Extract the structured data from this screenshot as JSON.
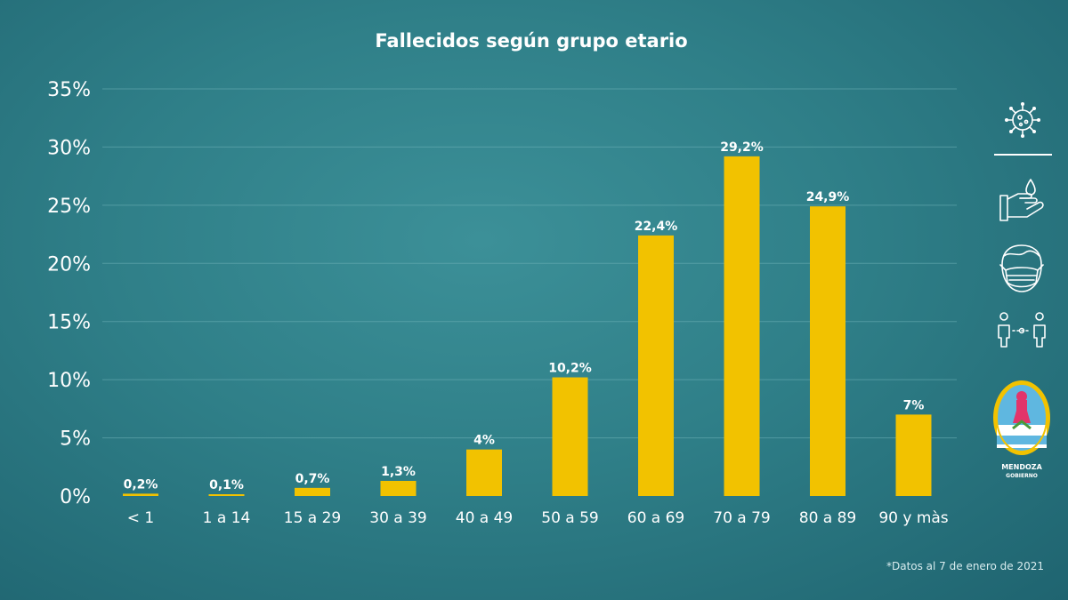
{
  "chart_data": {
    "type": "bar",
    "title": "Fallecidos según grupo etario",
    "categories": [
      "< 1",
      "1 a 14",
      "15 a 29",
      "30 a 39",
      "40 a 49",
      "50 a 59",
      "60 a 69",
      "70 a 79",
      "80 a 89",
      "90 y màs"
    ],
    "values": [
      0.2,
      0.1,
      0.7,
      1.3,
      4,
      10.2,
      22.4,
      29.2,
      24.9,
      7
    ],
    "data_labels": [
      "0,2%",
      "0,1%",
      "0,7%",
      "1,3%",
      "4%",
      "10,2%",
      "22,4%",
      "29,2%",
      "24,9%",
      "7%"
    ],
    "ylim": [
      0,
      35
    ],
    "yticks": [
      0,
      5,
      10,
      15,
      20,
      25,
      30,
      35
    ],
    "ytick_labels": [
      "0%",
      "5%",
      "10%",
      "15%",
      "20%",
      "25%",
      "30%",
      "35%"
    ],
    "grid": true,
    "bar_color": "#f2c200"
  },
  "footnote": "*Datos al 7 de enero de 2021",
  "sidebar": {
    "icons": [
      "virus-icon",
      "handwash-icon",
      "face-mask-icon",
      "social-distance-icon"
    ],
    "logo": {
      "name": "mendoza-gobierno-logo",
      "line1": "MENDOZA",
      "line2": "GOBIERNO"
    }
  }
}
